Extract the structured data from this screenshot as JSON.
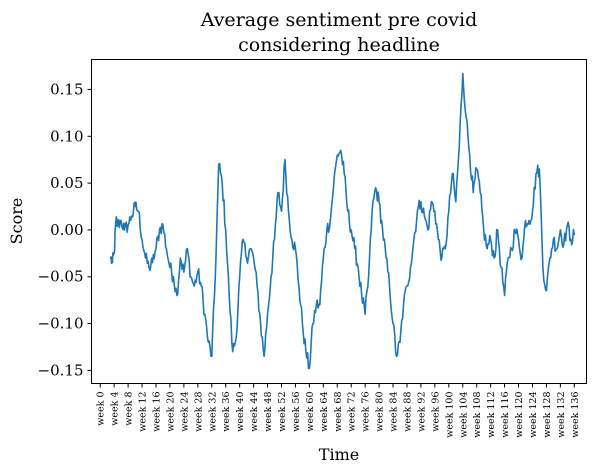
{
  "chart_data": {
    "type": "line",
    "title_lines": [
      "Average sentiment pre covid",
      "considering headline"
    ],
    "xlabel": "Time",
    "ylabel": "Score",
    "x_tick_labels": [
      "week 0",
      "week 4",
      "week 8",
      "week 12",
      "week 16",
      "week 20",
      "week 24",
      "week 28",
      "week 32",
      "week 36",
      "week 40",
      "week 44",
      "week 48",
      "week 52",
      "week 56",
      "week 60",
      "week 64",
      "week 68",
      "week 72",
      "week 76",
      "week 80",
      "week 84",
      "week 88",
      "week 92",
      "week 96",
      "week 100",
      "week 104",
      "week 108",
      "week 112",
      "week 116",
      "week 120",
      "week 124",
      "week 128",
      "week 132",
      "week 136"
    ],
    "x_tick_weeks": [
      0,
      4,
      8,
      12,
      16,
      20,
      24,
      28,
      32,
      36,
      40,
      44,
      48,
      52,
      56,
      60,
      64,
      68,
      72,
      76,
      80,
      84,
      88,
      92,
      96,
      100,
      104,
      108,
      112,
      116,
      120,
      124,
      128,
      132,
      136
    ],
    "y_ticks": [
      -0.15,
      -0.1,
      -0.05,
      0.0,
      0.05,
      0.1,
      0.15
    ],
    "y_tick_labels": [
      "−0.15",
      "−0.10",
      "−0.05",
      "0.00",
      "0.05",
      "0.10",
      "0.15"
    ],
    "xlim": [
      -2.5,
      139.5
    ],
    "ylim": [
      -0.164,
      0.182
    ],
    "grid": false,
    "series": [
      {
        "color": "#1f77b4",
        "x": [
          3,
          3.5,
          4,
          4.5,
          5,
          6,
          7,
          8,
          9,
          10,
          11,
          12,
          13,
          14,
          15,
          16,
          17,
          18,
          19,
          20,
          21,
          22,
          23,
          24,
          25,
          26,
          27,
          28,
          29,
          30,
          31,
          32,
          33,
          34,
          35,
          36,
          37,
          38,
          39,
          40,
          41,
          42,
          43,
          44,
          45,
          46,
          47,
          48,
          49,
          50,
          51,
          52,
          53,
          54,
          55,
          56,
          57,
          58,
          59,
          60,
          61,
          62,
          63,
          64,
          65,
          66,
          67,
          68,
          69,
          70,
          71,
          72,
          73,
          74,
          75,
          76,
          77,
          78,
          79,
          80,
          81,
          82,
          83,
          84,
          85,
          86,
          87,
          88,
          89,
          90,
          91,
          92,
          93,
          94,
          95,
          96,
          97,
          98,
          99,
          100,
          101,
          102,
          103,
          104,
          105,
          106,
          107,
          108,
          109,
          110,
          111,
          112,
          113,
          114,
          115,
          116,
          117,
          118,
          119,
          120,
          121,
          122,
          123,
          124,
          125,
          126,
          127,
          128,
          129,
          130,
          131,
          132,
          133,
          134,
          135,
          136
        ],
        "y": [
          -0.03,
          -0.035,
          -0.025,
          0.01,
          0.005,
          0.01,
          0.0,
          0.005,
          0.015,
          0.025,
          0.02,
          -0.01,
          -0.03,
          -0.04,
          -0.035,
          -0.02,
          0.0,
          0.005,
          -0.02,
          -0.04,
          -0.05,
          -0.07,
          -0.03,
          -0.045,
          -0.02,
          -0.05,
          -0.06,
          -0.045,
          -0.06,
          -0.09,
          -0.12,
          -0.135,
          -0.05,
          0.07,
          0.05,
          0.0,
          -0.07,
          -0.13,
          -0.115,
          -0.05,
          -0.01,
          -0.03,
          -0.02,
          -0.03,
          -0.06,
          -0.1,
          -0.135,
          -0.09,
          -0.05,
          -0.01,
          0.04,
          0.02,
          0.075,
          0.02,
          -0.01,
          -0.02,
          -0.06,
          -0.1,
          -0.13,
          -0.148,
          -0.1,
          -0.08,
          -0.08,
          -0.03,
          0.0,
          0.01,
          0.05,
          0.08,
          0.085,
          0.06,
          0.02,
          0.0,
          -0.02,
          -0.04,
          -0.07,
          -0.09,
          -0.05,
          0.02,
          0.045,
          0.03,
          0.0,
          -0.03,
          -0.06,
          -0.1,
          -0.135,
          -0.12,
          -0.08,
          -0.06,
          -0.04,
          -0.01,
          0.02,
          0.03,
          0.015,
          0.0,
          0.03,
          0.02,
          -0.01,
          -0.03,
          -0.02,
          0.02,
          0.06,
          0.03,
          0.09,
          0.167,
          0.12,
          0.08,
          0.04,
          0.065,
          0.04,
          0.0,
          -0.02,
          -0.01,
          -0.03,
          0.0,
          -0.04,
          -0.07,
          -0.03,
          -0.02,
          0.0,
          -0.01,
          -0.03,
          0.01,
          0.01,
          0.02,
          0.06,
          0.065,
          -0.04,
          -0.065,
          -0.03,
          -0.01,
          -0.02,
          0.0,
          -0.015,
          0.005,
          -0.01,
          -0.005
        ]
      }
    ]
  }
}
